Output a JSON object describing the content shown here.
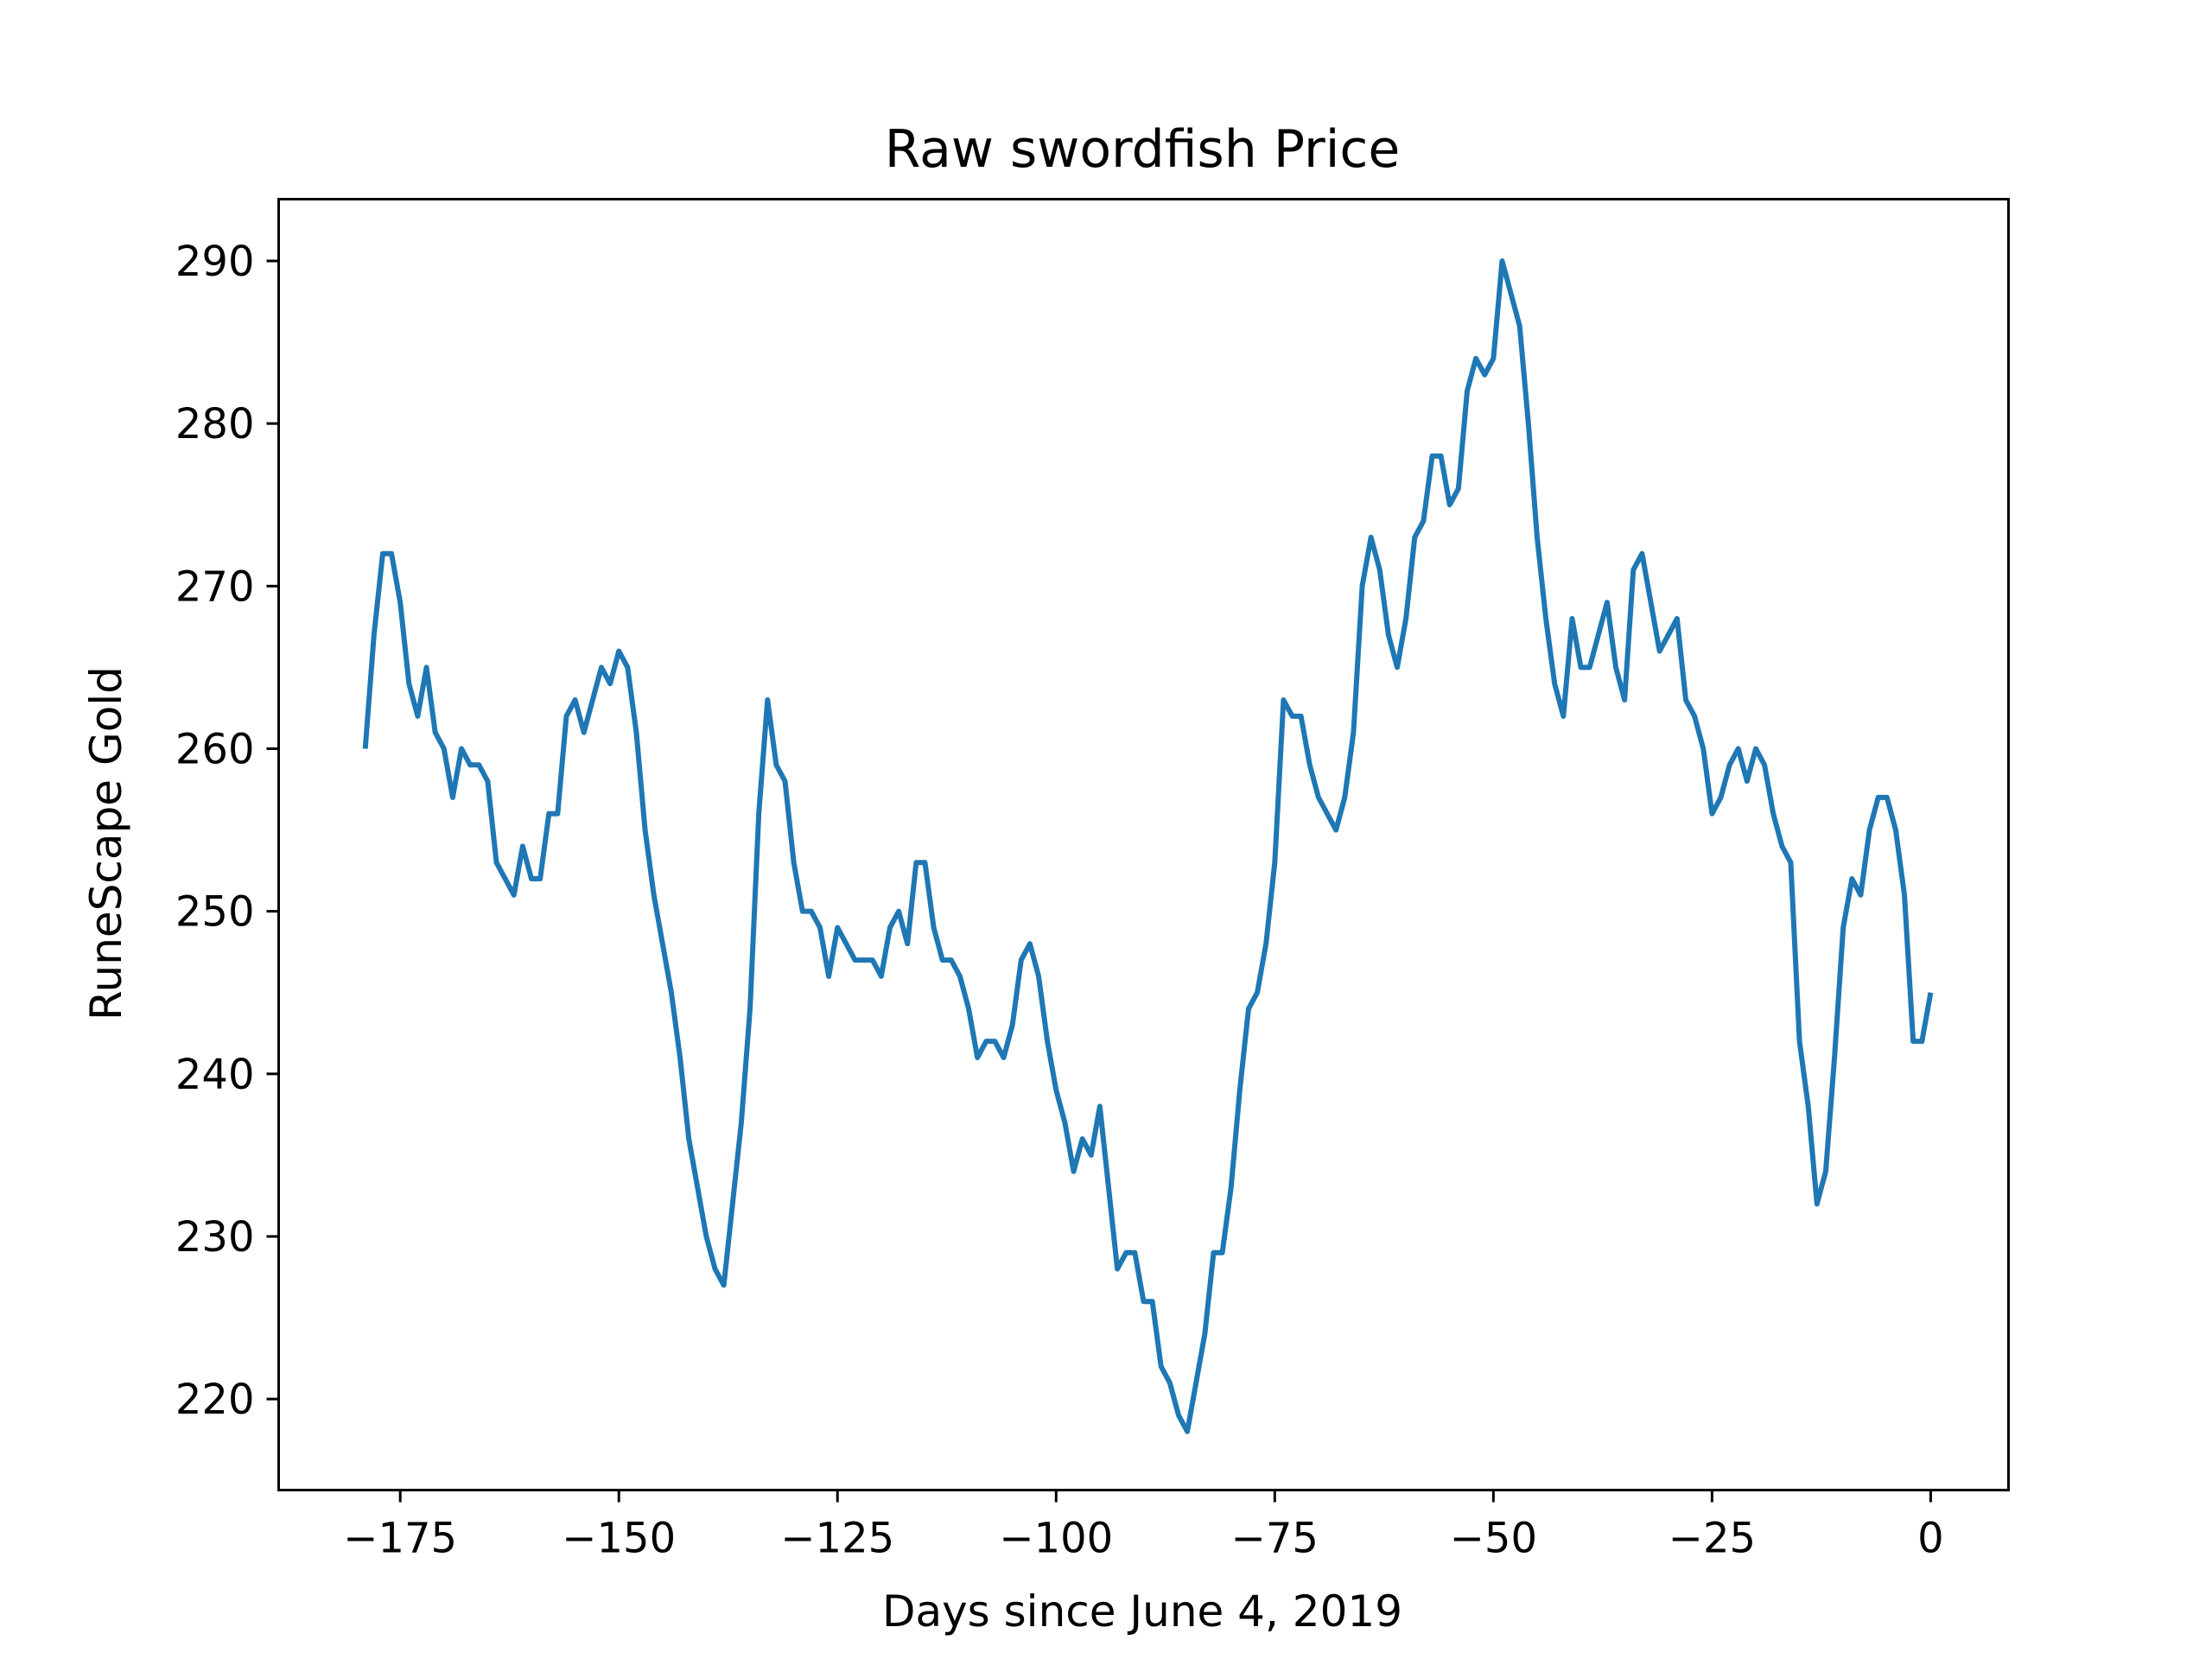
{
  "chart_data": {
    "type": "line",
    "title": "Raw swordfish Price",
    "xlabel": "Days since June 4, 2019",
    "ylabel": "RuneScape Gold",
    "xlim": [
      -188.9,
      8.9
    ],
    "ylim": [
      214.4,
      293.8
    ],
    "xticks": [
      -175,
      -150,
      -125,
      -100,
      -75,
      -50,
      -25,
      0
    ],
    "xtick_labels": [
      "−175",
      "−150",
      "−125",
      "−100",
      "−75",
      "−50",
      "−25",
      "0"
    ],
    "yticks": [
      220,
      230,
      240,
      250,
      260,
      270,
      280,
      290
    ],
    "ytick_labels": [
      "220",
      "230",
      "240",
      "250",
      "260",
      "270",
      "280",
      "290"
    ],
    "grid": false,
    "legend": "none",
    "line_color": "#1f77b4",
    "series": [
      {
        "x": [
          -179,
          -178,
          -177,
          -176,
          -175,
          -174,
          -173,
          -172,
          -171,
          -170,
          -169,
          -168,
          -167,
          -166,
          -165,
          -164,
          -163,
          -162,
          -161,
          -160,
          -159,
          -158,
          -157,
          -156,
          -155,
          -154,
          -153,
          -152,
          -151,
          -150,
          -149,
          -148,
          -147,
          -146,
          -145,
          -144,
          -143,
          -142,
          -141,
          -140,
          -139,
          -138,
          -137,
          -136,
          -135,
          -134,
          -133,
          -132,
          -131,
          -130,
          -129,
          -128,
          -127,
          -126,
          -125,
          -124,
          -123,
          -122,
          -121,
          -120,
          -119,
          -118,
          -117,
          -116,
          -115,
          -114,
          -113,
          -112,
          -111,
          -110,
          -109,
          -108,
          -107,
          -106,
          -105,
          -104,
          -103,
          -102,
          -101,
          -100,
          -99,
          -98,
          -97,
          -96,
          -95,
          -94,
          -93,
          -92,
          -91,
          -90,
          -89,
          -88,
          -87,
          -86,
          -85,
          -84,
          -83,
          -82,
          -81,
          -80,
          -79,
          -78,
          -77,
          -76,
          -75,
          -74,
          -73,
          -72,
          -71,
          -70,
          -69,
          -68,
          -67,
          -66,
          -65,
          -64,
          -63,
          -62,
          -61,
          -60,
          -59,
          -58,
          -57,
          -56,
          -55,
          -54,
          -53,
          -52,
          -51,
          -50,
          -49,
          -48,
          -47,
          -46,
          -45,
          -44,
          -43,
          -42,
          -41,
          -40,
          -39,
          -38,
          -37,
          -36,
          -35,
          -34,
          -33,
          -32,
          -31,
          -30,
          -29,
          -28,
          -27,
          -26,
          -25,
          -24,
          -23,
          -22,
          -21,
          -20,
          -19,
          -18,
          -17,
          -16,
          -15,
          -14,
          -13,
          -12,
          -11,
          -10,
          -9,
          -8,
          -7,
          -6,
          -5,
          -4,
          -3,
          -2,
          -1,
          0
        ],
        "y": [
          260,
          267,
          272,
          272,
          269,
          264,
          262,
          265,
          261,
          260,
          257,
          260,
          259,
          259,
          258,
          253,
          252,
          251,
          254,
          252,
          252,
          256,
          256,
          262,
          263,
          261,
          263,
          265,
          264,
          266,
          265,
          261,
          255,
          251,
          248,
          245,
          241,
          236,
          233,
          230,
          228,
          227,
          232,
          237,
          244,
          256,
          263,
          259,
          258,
          253,
          250,
          250,
          249,
          246,
          249,
          248,
          247,
          247,
          247,
          246,
          249,
          250,
          248,
          253,
          253,
          249,
          247,
          247,
          246,
          244,
          241,
          242,
          242,
          241,
          243,
          247,
          248,
          246,
          242,
          239,
          237,
          234,
          236,
          235,
          238,
          233,
          228,
          229,
          229,
          226,
          226,
          222,
          221,
          219,
          218,
          221,
          224,
          229,
          229,
          233,
          239,
          244,
          245,
          248,
          253,
          263,
          262,
          262,
          259,
          257,
          256,
          255,
          257,
          261,
          270,
          273,
          271,
          267,
          265,
          268,
          273,
          274,
          278,
          278,
          275,
          276,
          282,
          284,
          283,
          284,
          290,
          288,
          286,
          280,
          273,
          268,
          264,
          262,
          268,
          265,
          265,
          267,
          269,
          265,
          263,
          271,
          272,
          269,
          266,
          267,
          268,
          263,
          262,
          260,
          256,
          257,
          259,
          260,
          258,
          260,
          259,
          256,
          254,
          253,
          242,
          238,
          232,
          234,
          241,
          249,
          252,
          251,
          255,
          257,
          257,
          255,
          251,
          242,
          242,
          245
        ]
      }
    ]
  }
}
